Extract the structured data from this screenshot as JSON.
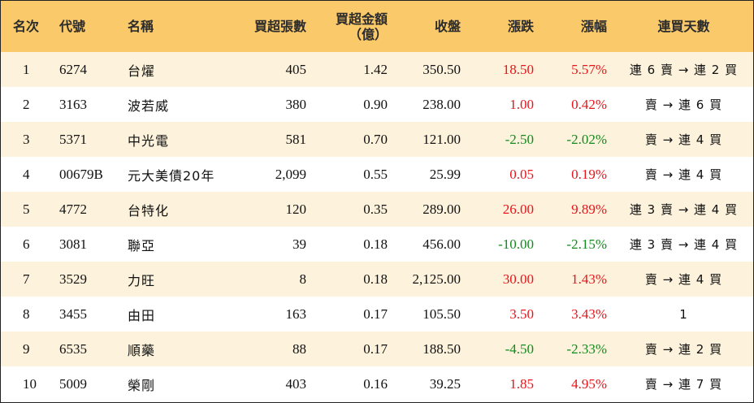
{
  "headers": {
    "rank": "名次",
    "code": "代號",
    "name": "名稱",
    "net_buy_lots": "買超張數",
    "net_buy_amount_line1": "買超金額",
    "net_buy_amount_line2": "（億）",
    "close": "收盤",
    "change": "漲跌",
    "change_pct": "漲幅",
    "streak": "連買天數"
  },
  "colors": {
    "header_bg": "#f9c96a",
    "row_alt_bg": "#fdf2dc",
    "up": "#e8141b",
    "down": "#118a1c"
  },
  "rows": [
    {
      "rank": "1",
      "code": "6274",
      "name": "台燿",
      "lots": "405",
      "amount": "1.42",
      "close": "350.50",
      "change": "18.50",
      "change_pct": "5.57%",
      "direction": "up",
      "streak": "連 6 賣 → 連 2 買"
    },
    {
      "rank": "2",
      "code": "3163",
      "name": "波若威",
      "lots": "380",
      "amount": "0.90",
      "close": "238.00",
      "change": "1.00",
      "change_pct": "0.42%",
      "direction": "up",
      "streak": "賣 → 連 6 買"
    },
    {
      "rank": "3",
      "code": "5371",
      "name": "中光電",
      "lots": "581",
      "amount": "0.70",
      "close": "121.00",
      "change": "-2.50",
      "change_pct": "-2.02%",
      "direction": "down",
      "streak": "賣 → 連 4 買"
    },
    {
      "rank": "4",
      "code": "00679B",
      "name": "元大美債20年",
      "lots": "2,099",
      "amount": "0.55",
      "close": "25.99",
      "change": "0.05",
      "change_pct": "0.19%",
      "direction": "up",
      "streak": "賣 → 連 4 買"
    },
    {
      "rank": "5",
      "code": "4772",
      "name": "台特化",
      "lots": "120",
      "amount": "0.35",
      "close": "289.00",
      "change": "26.00",
      "change_pct": "9.89%",
      "direction": "up",
      "streak": "連 3 賣 → 連 4 買"
    },
    {
      "rank": "6",
      "code": "3081",
      "name": "聯亞",
      "lots": "39",
      "amount": "0.18",
      "close": "456.00",
      "change": "-10.00",
      "change_pct": "-2.15%",
      "direction": "down",
      "streak": "連 3 賣 → 連 4 買"
    },
    {
      "rank": "7",
      "code": "3529",
      "name": "力旺",
      "lots": "8",
      "amount": "0.18",
      "close": "2,125.00",
      "change": "30.00",
      "change_pct": "1.43%",
      "direction": "up",
      "streak": "賣 → 連 4 買"
    },
    {
      "rank": "8",
      "code": "3455",
      "name": "由田",
      "lots": "163",
      "amount": "0.17",
      "close": "105.50",
      "change": "3.50",
      "change_pct": "3.43%",
      "direction": "up",
      "streak": "1"
    },
    {
      "rank": "9",
      "code": "6535",
      "name": "順藥",
      "lots": "88",
      "amount": "0.17",
      "close": "188.50",
      "change": "-4.50",
      "change_pct": "-2.33%",
      "direction": "down",
      "streak": "賣 → 連 2 買"
    },
    {
      "rank": "10",
      "code": "5009",
      "name": "榮剛",
      "lots": "403",
      "amount": "0.16",
      "close": "39.25",
      "change": "1.85",
      "change_pct": "4.95%",
      "direction": "up",
      "streak": "賣 → 連 7 買"
    }
  ]
}
